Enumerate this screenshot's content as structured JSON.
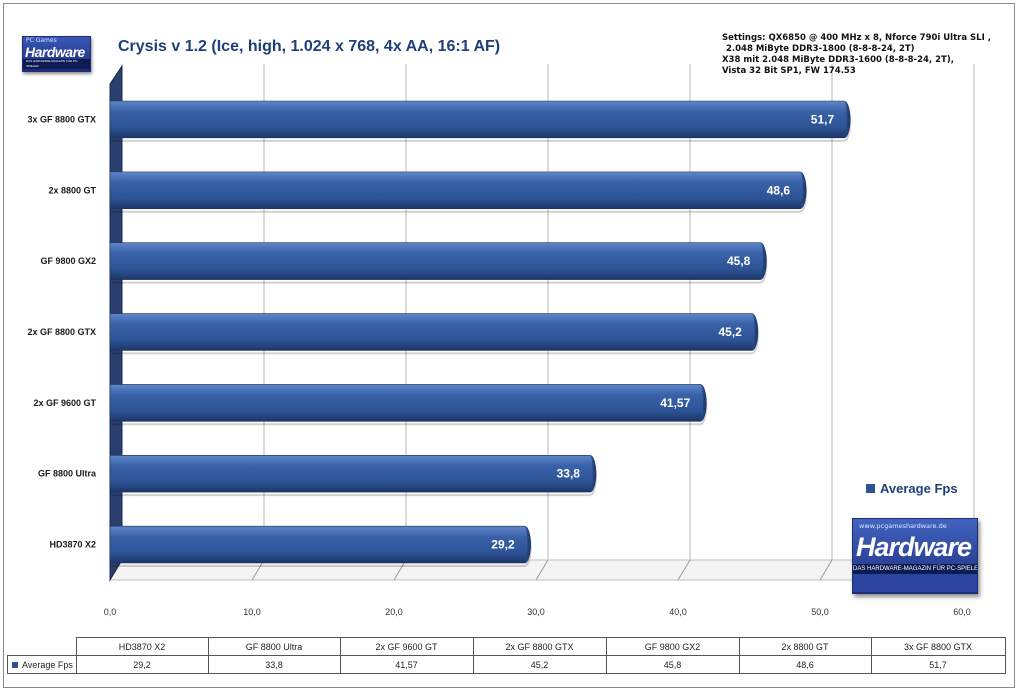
{
  "header": {
    "title": "Crysis v 1.2 (Ice, high, 1.024 x 768, 4x AA, 16:1 AF)",
    "settings_lines": [
      "Settings: QX6850 @ 400 MHz x 8, Nforce 790i Ultra SLI ,",
      "2.048 MiByte DDR3-1800 (8-8-8-24, 2T)",
      "X38 mit 2.048 MiByte DDR3-1600 (8-8-8-24, 2T),",
      "Vista 32 Bit SP1, FW 174.53"
    ]
  },
  "logo_small": {
    "top": "PC Games",
    "main": "Hardware",
    "sub": "DAS HARDWARE-MAGAZIN FÜR PC-SPIELER"
  },
  "logo_big": {
    "top": "www.pcgameshardware.de",
    "main": "Hardware",
    "sub": "DAS HARDWARE-MAGAZIN FÜR PC-SPIELER",
    "corner": "PC Games"
  },
  "chart_data": {
    "type": "bar",
    "orientation": "horizontal",
    "title": "Crysis v 1.2 (Ice, high, 1.024 x 768, 4x AA, 16:1 AF)",
    "categories": [
      "HD3870  X2",
      "GF 8800  Ultra",
      "2x GF 9600  GT",
      "2x GF 8800  GTX",
      "GF 9800  GX2",
      "2x 8800  GT",
      "3x GF 8800  GTX"
    ],
    "series": [
      {
        "name": "Average Fps",
        "values": [
          29.2,
          33.8,
          41.57,
          45.2,
          45.8,
          48.6,
          51.7
        ]
      }
    ],
    "value_labels": [
      "29,2",
      "33,8",
      "41,57",
      "45,2",
      "45,8",
      "48,6",
      "51,7"
    ],
    "xlim": [
      0,
      60
    ],
    "xticks": [
      0,
      10,
      20,
      30,
      40,
      50,
      60
    ],
    "xtick_labels": [
      "0,0",
      "10,0",
      "20,0",
      "30,0",
      "40,0",
      "50,0",
      "60,0"
    ],
    "grid": true,
    "legend_position": "right",
    "colors": {
      "bar": "#2d5396",
      "bar_dark": "#1c3668",
      "bar_light": "#5f86c8",
      "text": "#1f3f7a"
    }
  },
  "data_table": {
    "headers": [
      "HD3870 X2",
      "GF 8800 Ultra",
      "2x GF 9600 GT",
      "2x GF 8800 GTX",
      "GF 9800 GX2",
      "2x 8800 GT",
      "3x GF 8800 GTX"
    ],
    "row_label": "Average Fps",
    "values": [
      "29,2",
      "33,8",
      "41,57",
      "45,2",
      "45,8",
      "48,6",
      "51,7"
    ]
  }
}
